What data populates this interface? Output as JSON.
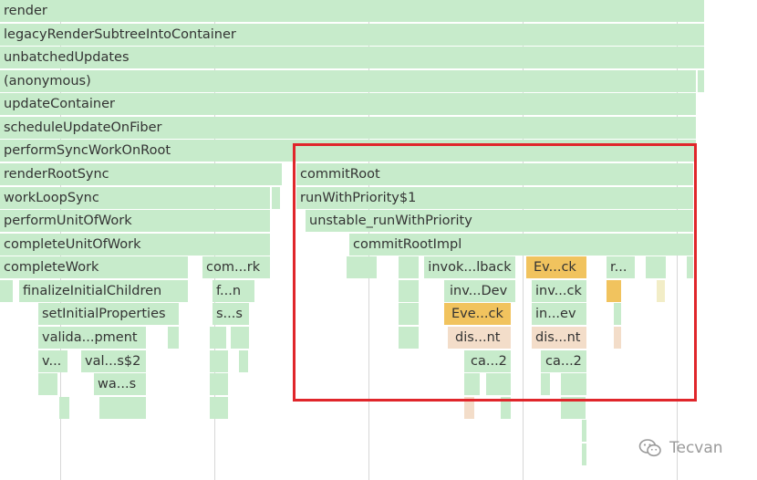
{
  "flamegraph": {
    "render": "render",
    "legacy": "legacyRenderSubtreeIntoContainer",
    "unbatched": "unbatchedUpdates",
    "anonymous": "(anonymous)",
    "update_container": "updateContainer",
    "schedule_update": "scheduleUpdateOnFiber",
    "perform_sync": "performSyncWorkOnRoot",
    "render_root_sync": "renderRootSync",
    "work_loop_sync": "workLoopSync",
    "perform_unit": "performUnitOfWork",
    "complete_unit": "completeUnitOfWork",
    "complete_work": "completeWork",
    "com_rk": "com...rk",
    "finalize_initial": "finalizeInitialChildren",
    "f_n": "f...n",
    "set_initial": "setInitialProperties",
    "s_s": "s...s",
    "valida_pment": "valida...pment",
    "v_dots": "v...",
    "val_s2": "val...s$2",
    "wa_s": "wa...s",
    "commit_root": "commitRoot",
    "run_with_priority": "runWithPriority$1",
    "unstable_run": "unstable_runWithPriority",
    "commit_root_impl": "commitRootImpl",
    "invok_lback": "invok...lback",
    "ev_ck": "Ev...ck",
    "r_dots": "r...",
    "inv_dev": "inv...Dev",
    "inv_ck": "inv...ck",
    "eve_ck": "Eve...ck",
    "in_ev": "in...ev",
    "dis_nt_1": "dis...nt",
    "dis_nt_2": "dis...nt",
    "ca_2_1": "ca...2",
    "ca_2_2": "ca...2"
  },
  "watermark": {
    "text": "Tecvan",
    "icon": "wechat-icon"
  },
  "colors": {
    "frame": "#c7ebcb",
    "highlight_frame": "#f1c35e",
    "highlight_box": "#e0262b"
  }
}
